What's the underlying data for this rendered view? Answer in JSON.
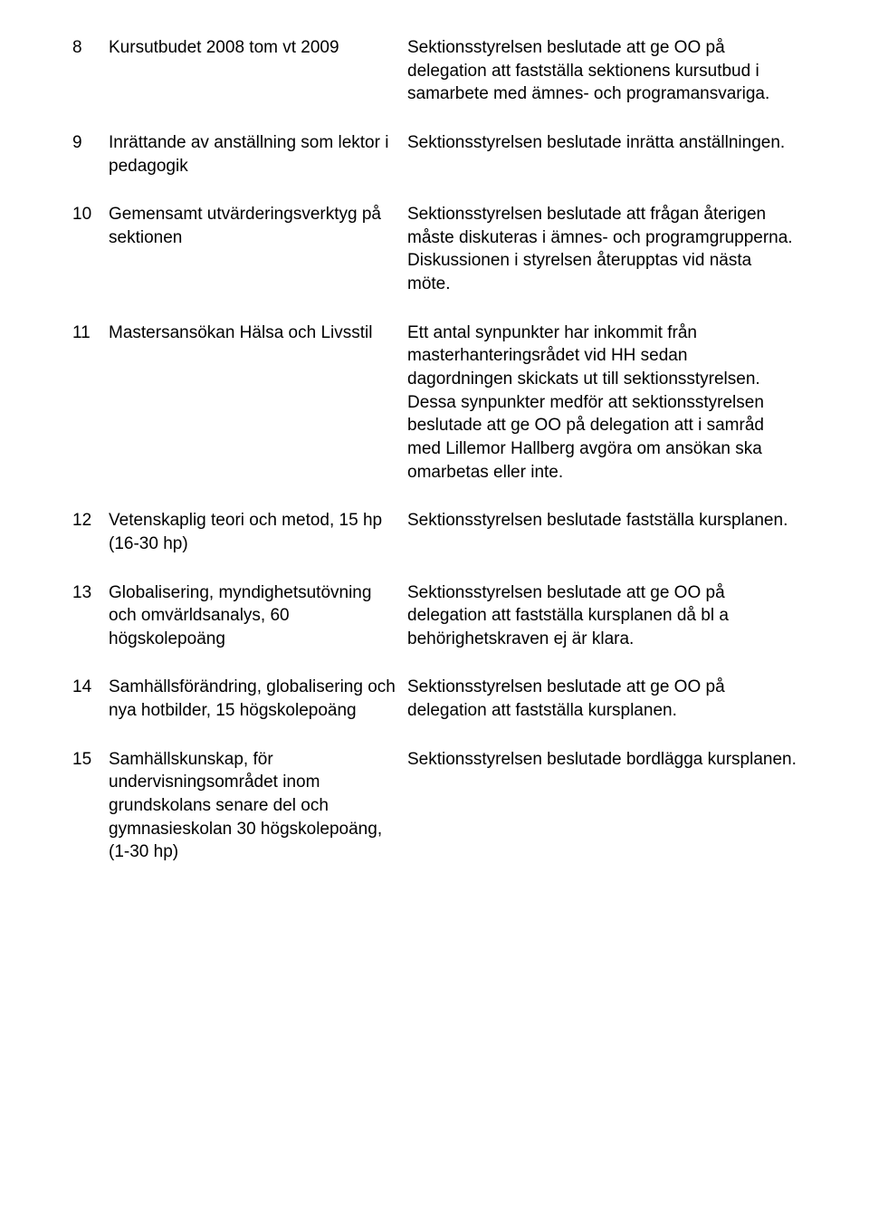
{
  "page": {
    "background": "#ffffff",
    "text_color": "#000000",
    "font_family": "Arial, Helvetica, sans-serif",
    "font_size_pt": 14
  },
  "items": [
    {
      "num": "8",
      "title": "Kursutbudet 2008 tom vt 2009",
      "body": "Sektionsstyrelsen beslutade att ge OO på delegation att fastställa sektionens kursutbud i samarbete med ämnes- och programansvariga."
    },
    {
      "num": "9",
      "title": "Inrättande av anställning som lektor i pedagogik",
      "body": "Sektionsstyrelsen beslutade inrätta anställningen."
    },
    {
      "num": "10",
      "title": "Gemensamt utvärderingsverktyg på sektionen",
      "body": "Sektionsstyrelsen beslutade att frågan återigen måste diskuteras i ämnes- och programgrupperna. Diskussionen i styrelsen återupptas vid nästa möte."
    },
    {
      "num": "11",
      "title": "Mastersansökan Hälsa och Livsstil",
      "body": "Ett antal synpunkter har inkommit från masterhanteringsrådet vid HH sedan dagordningen skickats ut till sektionsstyrelsen. Dessa synpunkter medför att sektionsstyrelsen beslutade att ge OO på delegation att i samråd med Lillemor Hallberg avgöra om ansökan ska omarbetas eller inte."
    },
    {
      "num": "12",
      "title": "Vetenskaplig teori och metod, 15 hp (16-30 hp)",
      "body": "Sektionsstyrelsen beslutade fastställa kursplanen."
    },
    {
      "num": "13",
      "title": "Globalisering, myndighetsutövning och omvärldsanalys, 60 högskolepoäng",
      "body": "Sektionsstyrelsen beslutade att ge OO på delegation att fastställa kursplanen då bl a behörighetskraven ej är klara."
    },
    {
      "num": "14",
      "title": "Samhällsförändring, globalisering och nya hotbilder, 15 högskolepoäng",
      "body": "Sektionsstyrelsen beslutade att ge OO på delegation att fastställa kursplanen."
    },
    {
      "num": "15",
      "title": "Samhällskunskap, för undervisningsområdet inom grundskolans senare del och gymnasieskolan 30 högskolepoäng, (1-30 hp)",
      "body": "Sektionsstyrelsen beslutade bordlägga kursplanen."
    }
  ]
}
